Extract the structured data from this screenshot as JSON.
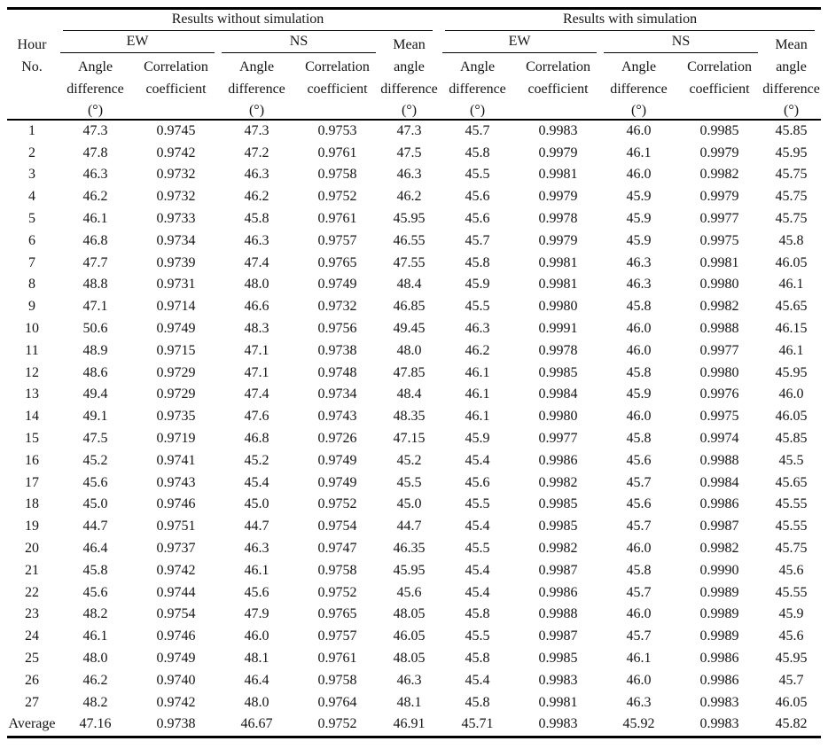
{
  "table": {
    "title_semantic": "hourly-angle-difference-correlation-results",
    "header": {
      "group_without": "Results without simulation",
      "group_with": "Results with simulation",
      "hour": "Hour",
      "no": "No.",
      "ew": "EW",
      "ns": "NS",
      "mean": "Mean",
      "angle": "Angle",
      "angle_lower": "angle",
      "difference": "difference",
      "correlation": "Correlation",
      "coefficient": "coefficient",
      "degree_unit": "(°)"
    },
    "columns": [
      "Hour No.",
      "Without EW Angle difference (°)",
      "Without EW Correlation coefficient",
      "Without NS Angle difference (°)",
      "Without NS Correlation coefficient",
      "Without Mean angle difference (°)",
      "With EW Angle difference (°)",
      "With EW Correlation coefficient",
      "With NS Angle difference (°)",
      "With NS Correlation coefficient",
      "With Mean angle difference (°)"
    ],
    "rows": [
      [
        "1",
        "47.3",
        "0.9745",
        "47.3",
        "0.9753",
        "47.3",
        "45.7",
        "0.9983",
        "46.0",
        "0.9985",
        "45.85"
      ],
      [
        "2",
        "47.8",
        "0.9742",
        "47.2",
        "0.9761",
        "47.5",
        "45.8",
        "0.9979",
        "46.1",
        "0.9979",
        "45.95"
      ],
      [
        "3",
        "46.3",
        "0.9732",
        "46.3",
        "0.9758",
        "46.3",
        "45.5",
        "0.9981",
        "46.0",
        "0.9982",
        "45.75"
      ],
      [
        "4",
        "46.2",
        "0.9732",
        "46.2",
        "0.9752",
        "46.2",
        "45.6",
        "0.9979",
        "45.9",
        "0.9979",
        "45.75"
      ],
      [
        "5",
        "46.1",
        "0.9733",
        "45.8",
        "0.9761",
        "45.95",
        "45.6",
        "0.9978",
        "45.9",
        "0.9977",
        "45.75"
      ],
      [
        "6",
        "46.8",
        "0.9734",
        "46.3",
        "0.9757",
        "46.55",
        "45.7",
        "0.9979",
        "45.9",
        "0.9975",
        "45.8"
      ],
      [
        "7",
        "47.7",
        "0.9739",
        "47.4",
        "0.9765",
        "47.55",
        "45.8",
        "0.9981",
        "46.3",
        "0.9981",
        "46.05"
      ],
      [
        "8",
        "48.8",
        "0.9731",
        "48.0",
        "0.9749",
        "48.4",
        "45.9",
        "0.9981",
        "46.3",
        "0.9980",
        "46.1"
      ],
      [
        "9",
        "47.1",
        "0.9714",
        "46.6",
        "0.9732",
        "46.85",
        "45.5",
        "0.9980",
        "45.8",
        "0.9982",
        "45.65"
      ],
      [
        "10",
        "50.6",
        "0.9749",
        "48.3",
        "0.9756",
        "49.45",
        "46.3",
        "0.9991",
        "46.0",
        "0.9988",
        "46.15"
      ],
      [
        "11",
        "48.9",
        "0.9715",
        "47.1",
        "0.9738",
        "48.0",
        "46.2",
        "0.9978",
        "46.0",
        "0.9977",
        "46.1"
      ],
      [
        "12",
        "48.6",
        "0.9729",
        "47.1",
        "0.9748",
        "47.85",
        "46.1",
        "0.9985",
        "45.8",
        "0.9980",
        "45.95"
      ],
      [
        "13",
        "49.4",
        "0.9729",
        "47.4",
        "0.9734",
        "48.4",
        "46.1",
        "0.9984",
        "45.9",
        "0.9976",
        "46.0"
      ],
      [
        "14",
        "49.1",
        "0.9735",
        "47.6",
        "0.9743",
        "48.35",
        "46.1",
        "0.9980",
        "46.0",
        "0.9975",
        "46.05"
      ],
      [
        "15",
        "47.5",
        "0.9719",
        "46.8",
        "0.9726",
        "47.15",
        "45.9",
        "0.9977",
        "45.8",
        "0.9974",
        "45.85"
      ],
      [
        "16",
        "45.2",
        "0.9741",
        "45.2",
        "0.9749",
        "45.2",
        "45.4",
        "0.9986",
        "45.6",
        "0.9988",
        "45.5"
      ],
      [
        "17",
        "45.6",
        "0.9743",
        "45.4",
        "0.9749",
        "45.5",
        "45.6",
        "0.9982",
        "45.7",
        "0.9984",
        "45.65"
      ],
      [
        "18",
        "45.0",
        "0.9746",
        "45.0",
        "0.9752",
        "45.0",
        "45.5",
        "0.9985",
        "45.6",
        "0.9986",
        "45.55"
      ],
      [
        "19",
        "44.7",
        "0.9751",
        "44.7",
        "0.9754",
        "44.7",
        "45.4",
        "0.9985",
        "45.7",
        "0.9987",
        "45.55"
      ],
      [
        "20",
        "46.4",
        "0.9737",
        "46.3",
        "0.9747",
        "46.35",
        "45.5",
        "0.9982",
        "46.0",
        "0.9982",
        "45.75"
      ],
      [
        "21",
        "45.8",
        "0.9742",
        "46.1",
        "0.9758",
        "45.95",
        "45.4",
        "0.9987",
        "45.8",
        "0.9990",
        "45.6"
      ],
      [
        "22",
        "45.6",
        "0.9744",
        "45.6",
        "0.9752",
        "45.6",
        "45.4",
        "0.9986",
        "45.7",
        "0.9989",
        "45.55"
      ],
      [
        "23",
        "48.2",
        "0.9754",
        "47.9",
        "0.9765",
        "48.05",
        "45.8",
        "0.9988",
        "46.0",
        "0.9989",
        "45.9"
      ],
      [
        "24",
        "46.1",
        "0.9746",
        "46.0",
        "0.9757",
        "46.05",
        "45.5",
        "0.9987",
        "45.7",
        "0.9989",
        "45.6"
      ],
      [
        "25",
        "48.0",
        "0.9749",
        "48.1",
        "0.9761",
        "48.05",
        "45.8",
        "0.9985",
        "46.1",
        "0.9986",
        "45.95"
      ],
      [
        "26",
        "46.2",
        "0.9740",
        "46.4",
        "0.9758",
        "46.3",
        "45.4",
        "0.9983",
        "46.0",
        "0.9986",
        "45.7"
      ],
      [
        "27",
        "48.2",
        "0.9742",
        "48.0",
        "0.9764",
        "48.1",
        "45.8",
        "0.9981",
        "46.3",
        "0.9983",
        "46.05"
      ],
      [
        "Average",
        "47.16",
        "0.9738",
        "46.67",
        "0.9752",
        "46.91",
        "45.71",
        "0.9983",
        "45.92",
        "0.9983",
        "45.82"
      ]
    ]
  }
}
